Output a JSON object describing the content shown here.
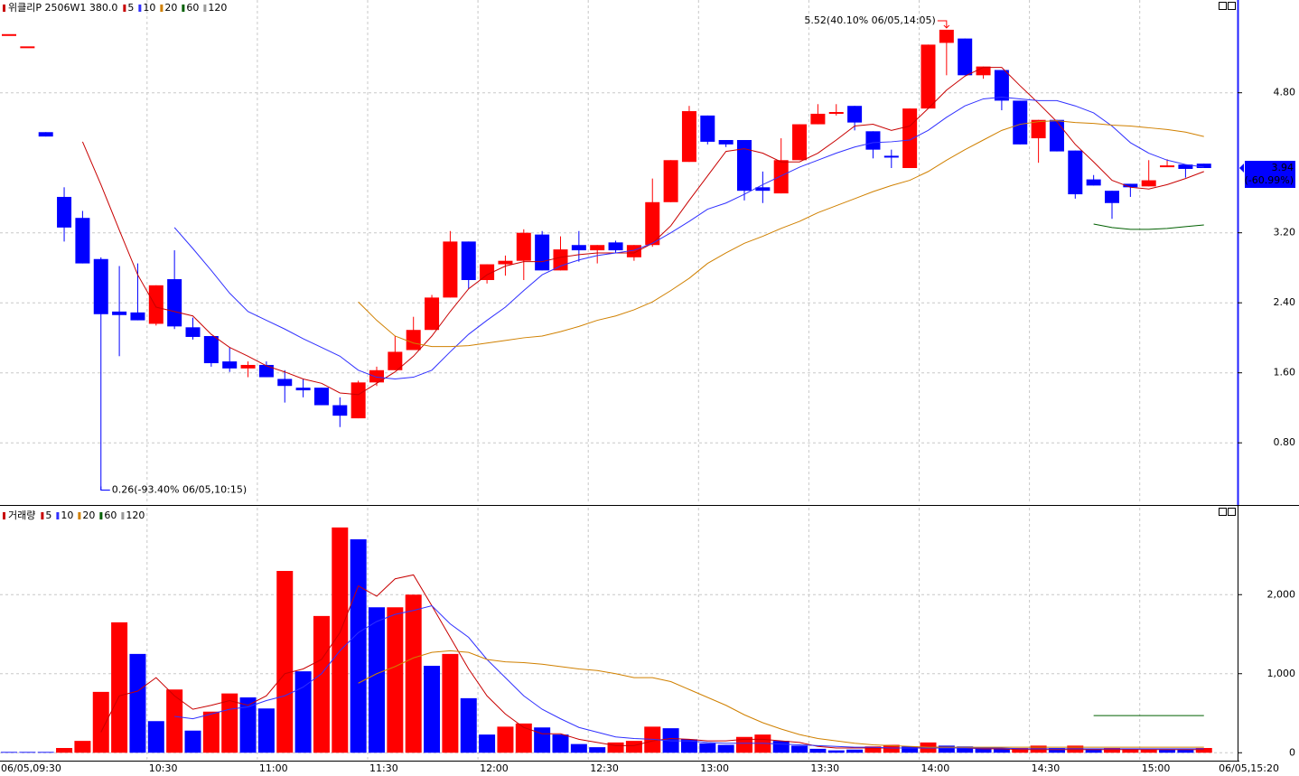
{
  "chart_data": [
    {
      "type": "candlestick",
      "title": "위클리P 2506W1 380.0",
      "categories": [
        null,
        null,
        null,
        null,
        null,
        null,
        null,
        null,
        "10:30",
        null,
        null,
        null,
        null,
        null,
        "11:00",
        null,
        null,
        null,
        null,
        null,
        "11:30",
        null,
        null,
        null,
        null,
        null,
        "12:00",
        null,
        null,
        null,
        null,
        null,
        "12:30",
        null,
        null,
        null,
        null,
        null,
        "13:00",
        null,
        null,
        null,
        null,
        null,
        "13:30",
        null,
        null,
        null,
        null,
        null,
        "14:00",
        null,
        null,
        null,
        null,
        null,
        "14:30",
        null,
        null,
        null,
        null,
        null,
        "15:00",
        null,
        null,
        null
      ],
      "x_start_label": "06/05,09:30",
      "x_end_label": "06/05,15:20",
      "up_color": "#ff0000",
      "down_color": "#0000ff",
      "open": [
        5.47,
        5.33,
        4.35,
        3.61,
        3.37,
        2.9,
        2.3,
        2.29,
        2.16,
        2.67,
        2.12,
        2.02,
        1.73,
        1.65,
        1.69,
        1.53,
        1.43,
        1.43,
        1.23,
        1.08,
        1.49,
        1.63,
        1.86,
        2.09,
        2.46,
        3.1,
        2.66,
        2.84,
        2.88,
        3.18,
        2.77,
        3.06,
        3.0,
        3.09,
        2.92,
        3.06,
        3.55,
        4.01,
        4.54,
        4.26,
        4.26,
        3.72,
        3.65,
        4.03,
        4.44,
        4.56,
        4.65,
        4.36,
        4.08,
        3.94,
        4.62,
        5.37,
        5.42,
        5.0,
        5.06,
        4.71,
        4.28,
        4.49,
        4.14,
        3.81,
        3.68,
        3.76,
        3.73,
        3.95,
        3.98,
        3.99
      ],
      "high": [
        5.47,
        5.33,
        4.35,
        3.72,
        3.45,
        2.92,
        2.82,
        2.85,
        2.6,
        3.0,
        2.23,
        2.02,
        1.89,
        1.73,
        1.73,
        1.63,
        1.53,
        1.43,
        1.32,
        1.51,
        1.67,
        2.02,
        2.24,
        2.49,
        3.22,
        3.1,
        2.84,
        2.94,
        3.24,
        3.22,
        3.16,
        3.22,
        3.06,
        3.11,
        3.06,
        3.82,
        4.03,
        4.65,
        4.54,
        4.26,
        4.26,
        3.9,
        4.28,
        4.44,
        4.67,
        4.67,
        4.65,
        4.36,
        4.15,
        4.62,
        5.35,
        5.52,
        5.42,
        5.1,
        5.06,
        4.71,
        4.49,
        4.49,
        4.14,
        3.86,
        3.68,
        3.76,
        4.03,
        4.04,
        3.98,
        3.99
      ],
      "low": [
        5.47,
        5.33,
        4.3,
        3.1,
        2.85,
        0.26,
        1.79,
        2.2,
        2.14,
        2.1,
        1.98,
        1.67,
        1.61,
        1.55,
        1.55,
        1.26,
        1.32,
        1.23,
        0.98,
        1.08,
        1.45,
        1.63,
        1.86,
        2.09,
        2.46,
        2.56,
        2.62,
        2.71,
        2.66,
        2.77,
        2.77,
        2.87,
        2.85,
        2.97,
        2.88,
        3.04,
        3.55,
        4.01,
        4.21,
        4.18,
        3.57,
        3.54,
        3.65,
        4.03,
        4.44,
        4.54,
        4.37,
        4.05,
        3.94,
        3.94,
        4.62,
        5.0,
        5.0,
        4.96,
        4.6,
        4.21,
        4.0,
        4.13,
        3.59,
        3.74,
        3.36,
        3.61,
        3.73,
        3.95,
        3.83,
        3.94
      ],
      "close": [
        5.47,
        5.33,
        4.3,
        3.26,
        2.85,
        2.27,
        2.26,
        2.2,
        2.6,
        2.13,
        2.01,
        1.71,
        1.65,
        1.69,
        1.55,
        1.45,
        1.4,
        1.23,
        1.11,
        1.49,
        1.63,
        1.84,
        2.09,
        2.46,
        3.1,
        2.66,
        2.84,
        2.88,
        3.2,
        2.77,
        3.01,
        3.0,
        3.06,
        3.0,
        3.06,
        3.55,
        4.03,
        4.59,
        4.24,
        4.21,
        3.68,
        3.68,
        4.03,
        4.44,
        4.56,
        4.58,
        4.46,
        4.15,
        4.06,
        4.62,
        5.35,
        5.52,
        5.0,
        5.1,
        4.71,
        4.21,
        4.49,
        4.13,
        3.64,
        3.74,
        3.54,
        3.72,
        3.8,
        3.97,
        3.93,
        3.94
      ],
      "series": [
        {
          "name": "5",
          "color": "#c80000",
          "values": [
            null,
            null,
            null,
            null,
            4.24,
            3.75,
            3.23,
            2.72,
            2.35,
            2.3,
            2.25,
            2.04,
            1.89,
            1.79,
            1.68,
            1.61,
            1.53,
            1.48,
            1.37,
            1.35,
            1.48,
            1.61,
            1.79,
            2.02,
            2.3,
            2.56,
            2.72,
            2.82,
            2.87,
            2.87,
            2.92,
            2.95,
            2.97,
            2.97,
            2.97,
            3.08,
            3.28,
            3.57,
            3.85,
            4.13,
            4.16,
            4.11,
            4.01,
            4.01,
            4.11,
            4.26,
            4.42,
            4.44,
            4.37,
            4.42,
            4.62,
            4.83,
            4.99,
            5.09,
            5.09,
            4.88,
            4.68,
            4.47,
            4.21,
            4.01,
            3.8,
            3.72,
            3.7,
            3.75,
            3.82,
            3.9
          ]
        },
        {
          "name": "10",
          "color": "#3030ff",
          "values": [
            null,
            null,
            null,
            null,
            null,
            null,
            null,
            null,
            null,
            3.26,
            3.02,
            2.77,
            2.51,
            2.3,
            2.2,
            2.1,
            1.99,
            1.89,
            1.79,
            1.63,
            1.55,
            1.53,
            1.55,
            1.63,
            1.84,
            2.04,
            2.2,
            2.35,
            2.54,
            2.72,
            2.82,
            2.89,
            2.94,
            2.97,
            3.0,
            3.08,
            3.2,
            3.33,
            3.47,
            3.54,
            3.64,
            3.75,
            3.85,
            3.95,
            4.03,
            4.11,
            4.18,
            4.23,
            4.24,
            4.26,
            4.37,
            4.52,
            4.65,
            4.73,
            4.75,
            4.73,
            4.71,
            4.71,
            4.65,
            4.57,
            4.42,
            4.23,
            4.11,
            4.03,
            3.98,
            3.95
          ]
        },
        {
          "name": "20",
          "color": "#d08000",
          "values": [
            null,
            null,
            null,
            null,
            null,
            null,
            null,
            null,
            null,
            null,
            null,
            null,
            null,
            null,
            null,
            null,
            null,
            null,
            null,
            2.41,
            2.2,
            2.02,
            1.94,
            1.9,
            1.9,
            1.91,
            1.94,
            1.97,
            2.0,
            2.02,
            2.07,
            2.13,
            2.2,
            2.25,
            2.32,
            2.41,
            2.54,
            2.68,
            2.85,
            2.97,
            3.08,
            3.16,
            3.25,
            3.33,
            3.43,
            3.51,
            3.59,
            3.67,
            3.74,
            3.8,
            3.9,
            4.03,
            4.15,
            4.26,
            4.37,
            4.44,
            4.47,
            4.48,
            4.46,
            4.45,
            4.43,
            4.42,
            4.4,
            4.38,
            4.35,
            4.3
          ]
        },
        {
          "name": "60",
          "color": "#006000",
          "values": [
            null,
            null,
            null,
            null,
            null,
            null,
            null,
            null,
            null,
            null,
            null,
            null,
            null,
            null,
            null,
            null,
            null,
            null,
            null,
            null,
            null,
            null,
            null,
            null,
            null,
            null,
            null,
            null,
            null,
            null,
            null,
            null,
            null,
            null,
            null,
            null,
            null,
            null,
            null,
            null,
            null,
            null,
            null,
            null,
            null,
            null,
            null,
            null,
            null,
            null,
            null,
            null,
            null,
            null,
            null,
            null,
            null,
            null,
            null,
            3.3,
            3.26,
            3.24,
            3.24,
            3.25,
            3.27,
            3.29
          ]
        }
      ],
      "legend_extra": {
        "name": "120",
        "color": "#999999"
      },
      "ylim": [
        0.1,
        5.86
      ],
      "yticks": [
        {
          "value": 0.8,
          "label": "0.80"
        },
        {
          "value": 1.6,
          "label": "1.60"
        },
        {
          "value": 2.4,
          "label": "2.40"
        },
        {
          "value": 3.2,
          "label": "3.20"
        },
        {
          "value": 4.8,
          "label": "4.80"
        }
      ],
      "grid": true,
      "high_annotation": {
        "value": 5.52,
        "label": "5.52(40.10% 06/05,14:05)"
      },
      "low_annotation": {
        "value": 0.26,
        "label": "0.26(-93.40% 06/05,10:15)"
      },
      "last_price": {
        "value": 3.94,
        "label": "3.94"
      },
      "last_change": "(-60.99%)"
    },
    {
      "type": "bar",
      "title": "거래량",
      "values": [
        10,
        10,
        10,
        60,
        150,
        770,
        1650,
        1250,
        400,
        800,
        280,
        520,
        750,
        700,
        560,
        2300,
        1030,
        1730,
        2850,
        2700,
        1840,
        1840,
        2000,
        1100,
        1250,
        690,
        230,
        330,
        370,
        320,
        230,
        110,
        70,
        130,
        150,
        330,
        310,
        170,
        120,
        100,
        200,
        230,
        150,
        90,
        50,
        30,
        40,
        80,
        100,
        80,
        130,
        90,
        80,
        60,
        50,
        60,
        90,
        60,
        90,
        50,
        60,
        50,
        40,
        40,
        40,
        60
      ],
      "colors": [
        "#0000ff",
        "#0000ff",
        "#0000ff",
        "#ff0000",
        "#ff0000",
        "#ff0000",
        "#ff0000",
        "#0000ff",
        "#0000ff",
        "#ff0000",
        "#0000ff",
        "#ff0000",
        "#ff0000",
        "#0000ff",
        "#0000ff",
        "#ff0000",
        "#0000ff",
        "#ff0000",
        "#ff0000",
        "#0000ff",
        "#0000ff",
        "#ff0000",
        "#ff0000",
        "#0000ff",
        "#ff0000",
        "#0000ff",
        "#0000ff",
        "#ff0000",
        "#ff0000",
        "#0000ff",
        "#0000ff",
        "#0000ff",
        "#0000ff",
        "#ff0000",
        "#ff0000",
        "#ff0000",
        "#0000ff",
        "#0000ff",
        "#0000ff",
        "#0000ff",
        "#ff0000",
        "#ff0000",
        "#0000ff",
        "#0000ff",
        "#0000ff",
        "#0000ff",
        "#0000ff",
        "#ff0000",
        "#ff0000",
        "#0000ff",
        "#ff0000",
        "#0000ff",
        "#0000ff",
        "#0000ff",
        "#0000ff",
        "#ff0000",
        "#ff0000",
        "#0000ff",
        "#ff0000",
        "#0000ff",
        "#ff0000",
        "#ff0000",
        "#ff0000",
        "#0000ff",
        "#0000ff",
        "#ff0000"
      ],
      "series": [
        {
          "name": "5",
          "color": "#c80000",
          "values": [
            null,
            null,
            null,
            null,
            null,
            260,
            720,
            780,
            950,
            720,
            550,
            600,
            660,
            600,
            720,
            1000,
            1060,
            1180,
            1520,
            2110,
            1980,
            2200,
            2250,
            1860,
            1460,
            1060,
            720,
            490,
            320,
            240,
            240,
            170,
            130,
            90,
            90,
            150,
            180,
            170,
            150,
            150,
            170,
            170,
            150,
            130,
            80,
            60,
            60,
            60,
            60,
            60,
            70,
            70,
            60,
            50,
            50,
            40,
            40,
            40,
            40,
            40,
            40,
            40,
            40,
            40,
            40,
            40
          ]
        },
        {
          "name": "10",
          "color": "#3030ff",
          "values": [
            null,
            null,
            null,
            null,
            null,
            null,
            null,
            null,
            null,
            460,
            430,
            490,
            550,
            580,
            660,
            720,
            830,
            1000,
            1290,
            1520,
            1660,
            1750,
            1800,
            1860,
            1630,
            1460,
            1180,
            950,
            720,
            550,
            430,
            320,
            260,
            200,
            180,
            170,
            150,
            150,
            130,
            120,
            120,
            120,
            110,
            100,
            90,
            80,
            70,
            70,
            60,
            60,
            60,
            60,
            60,
            60,
            60,
            50,
            50,
            50,
            50,
            50,
            50,
            50,
            50,
            50,
            50,
            50
          ]
        },
        {
          "name": "20",
          "color": "#d08000",
          "values": [
            null,
            null,
            null,
            null,
            null,
            null,
            null,
            null,
            null,
            null,
            null,
            null,
            null,
            null,
            null,
            null,
            null,
            null,
            null,
            880,
            1000,
            1090,
            1200,
            1270,
            1290,
            1270,
            1180,
            1150,
            1140,
            1120,
            1090,
            1060,
            1040,
            1000,
            950,
            950,
            900,
            800,
            700,
            600,
            480,
            380,
            300,
            230,
            180,
            150,
            120,
            100,
            90,
            80,
            70,
            70,
            70,
            70,
            70,
            70,
            70,
            70,
            70,
            70,
            70,
            70,
            70,
            70,
            70,
            70
          ]
        },
        {
          "name": "60",
          "color": "#006000",
          "values": [
            null,
            null,
            null,
            null,
            null,
            null,
            null,
            null,
            null,
            null,
            null,
            null,
            null,
            null,
            null,
            null,
            null,
            null,
            null,
            null,
            null,
            null,
            null,
            null,
            null,
            null,
            null,
            null,
            null,
            null,
            null,
            null,
            null,
            null,
            null,
            null,
            null,
            null,
            null,
            null,
            null,
            null,
            null,
            null,
            null,
            null,
            null,
            null,
            null,
            null,
            null,
            null,
            null,
            null,
            null,
            null,
            null,
            null,
            null,
            470,
            470,
            470,
            470,
            470,
            470,
            470
          ]
        }
      ],
      "legend_extra": {
        "name": "120",
        "color": "#999999"
      },
      "ylim": [
        -100,
        3100
      ],
      "yticks": [
        0,
        {
          "value": 1000,
          "label": "1,000"
        },
        {
          "value": 2000,
          "label": "2,000"
        }
      ],
      "grid": true
    }
  ]
}
